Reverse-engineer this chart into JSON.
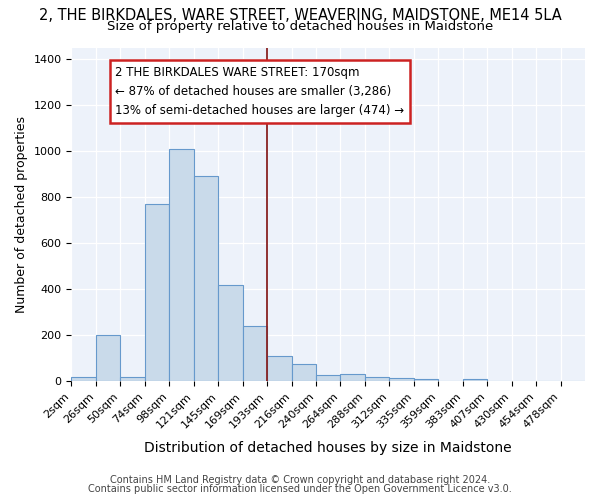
{
  "title": "2, THE BIRKDALES, WARE STREET, WEAVERING, MAIDSTONE, ME14 5LA",
  "subtitle": "Size of property relative to detached houses in Maidstone",
  "xlabel": "Distribution of detached houses by size in Maidstone",
  "ylabel": "Number of detached properties",
  "bar_labels": [
    "2sqm",
    "26sqm",
    "50sqm",
    "74sqm",
    "98sqm",
    "121sqm",
    "145sqm",
    "169sqm",
    "193sqm",
    "216sqm",
    "240sqm",
    "264sqm",
    "288sqm",
    "312sqm",
    "335sqm",
    "359sqm",
    "383sqm",
    "407sqm",
    "430sqm",
    "454sqm",
    "478sqm"
  ],
  "bar_heights": [
    20,
    200,
    20,
    770,
    1010,
    890,
    420,
    240,
    110,
    75,
    25,
    30,
    20,
    15,
    8,
    0,
    10,
    0,
    0,
    0,
    0
  ],
  "bar_color": "#c9daea",
  "bar_edge_color": "#6699cc",
  "annotation_text": "2 THE BIRKDALES WARE STREET: 170sqm\n← 87% of detached houses are smaller (3,286)\n13% of semi-detached houses are larger (474) →",
  "annotation_box_color": "#ffffff",
  "annotation_box_edge": "#cc2222",
  "vline_color": "#882222",
  "ylim": [
    0,
    1450
  ],
  "yticks": [
    0,
    200,
    400,
    600,
    800,
    1000,
    1200,
    1400
  ],
  "plot_bg_color": "#edf2fa",
  "fig_bg_color": "#ffffff",
  "footer1": "Contains HM Land Registry data © Crown copyright and database right 2024.",
  "footer2": "Contains public sector information licensed under the Open Government Licence v3.0.",
  "title_fontsize": 10.5,
  "subtitle_fontsize": 9.5,
  "ylabel_fontsize": 9,
  "xlabel_fontsize": 10,
  "tick_fontsize": 8,
  "footer_fontsize": 7,
  "annotation_fontsize": 8.5
}
